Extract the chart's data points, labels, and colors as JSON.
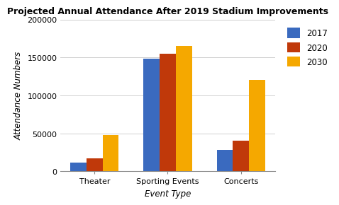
{
  "title": "Projected Annual Attendance After 2019 Stadium Improvements",
  "xlabel": "Event Type",
  "ylabel": "Attendance Numbers",
  "categories": [
    "Theater",
    "Sporting Events",
    "Concerts"
  ],
  "years": [
    "2017",
    "2020",
    "2030"
  ],
  "values": {
    "2017": [
      12000,
      148000,
      28000
    ],
    "2020": [
      17000,
      155000,
      40000
    ],
    "2030": [
      48000,
      165000,
      120000
    ]
  },
  "colors": {
    "2017": "#3a6abf",
    "2020": "#c0390a",
    "2030": "#f5a800"
  },
  "ylim": [
    0,
    200000
  ],
  "yticks": [
    0,
    50000,
    100000,
    150000,
    200000
  ],
  "bar_width": 0.22,
  "title_fontsize": 9,
  "axis_label_fontsize": 8.5,
  "tick_fontsize": 8,
  "legend_fontsize": 8.5,
  "background_color": "#ffffff",
  "grid_color": "#d0d0d0"
}
